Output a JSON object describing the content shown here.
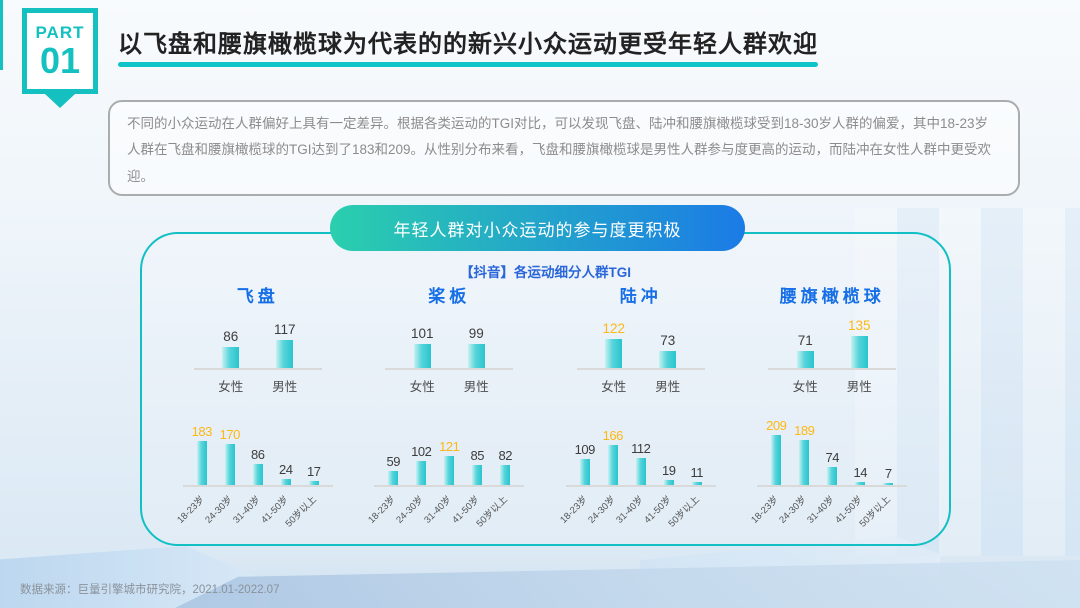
{
  "part_badge": {
    "part": "PART",
    "number": "01"
  },
  "header": {
    "title": "以飞盘和腰旗橄榄球为代表的的新兴小众运动更受年轻人群欢迎"
  },
  "intro": {
    "text": "不同的小众运动在人群偏好上具有一定差异。根据各类运动的TGI对比，可以发现飞盘、陆冲和腰旗橄榄球受到18-30岁人群的偏爱，其中18-23岁人群在飞盘和腰旗橄榄球的TGI达到了183和209。从性别分布来看，飞盘和腰旗橄榄球是男性人群参与度更高的运动，而陆冲在女性人群中更受欢迎。"
  },
  "panel": {
    "pill_title": "年轻人群对小众运动的参与度更积极",
    "chart_subtitle": "【抖音】各运动细分人群TGI"
  },
  "colors": {
    "accent_teal": "#14C0C0",
    "panel_border": "#12BFC4",
    "pill_gradient_from": "#2BCFAE",
    "pill_gradient_to": "#1B7BE6",
    "sport_title_blue": "#176FE8",
    "subtitle_blue": "#2A66D9",
    "value_label": "#3D3D3D",
    "value_label_gold": "#FDB813",
    "bar_gradient_from": "#C6F1F2",
    "bar_gradient_to": "#28C5CF"
  },
  "chart_data": [
    {
      "sport": "飞盘",
      "gender": {
        "type": "bar",
        "ylim": [
          0,
          220
        ],
        "categories": [
          "女性",
          "男性"
        ],
        "values": [
          86,
          117
        ],
        "gold": [
          false,
          false
        ]
      },
      "age": {
        "type": "bar",
        "ylim": [
          0,
          220
        ],
        "categories": [
          "18-23岁",
          "24-30岁",
          "31-40岁",
          "41-50岁",
          "50岁以上"
        ],
        "values": [
          183,
          170,
          86,
          24,
          17
        ],
        "gold": [
          true,
          true,
          false,
          false,
          false
        ]
      }
    },
    {
      "sport": "桨板",
      "gender": {
        "type": "bar",
        "ylim": [
          0,
          220
        ],
        "categories": [
          "女性",
          "男性"
        ],
        "values": [
          101,
          99
        ],
        "gold": [
          false,
          false
        ]
      },
      "age": {
        "type": "bar",
        "ylim": [
          0,
          220
        ],
        "categories": [
          "18-23岁",
          "24-30岁",
          "31-40岁",
          "41-50岁",
          "50岁以上"
        ],
        "values": [
          59,
          102,
          121,
          85,
          82
        ],
        "gold": [
          false,
          false,
          true,
          false,
          false
        ]
      }
    },
    {
      "sport": "陆冲",
      "gender": {
        "type": "bar",
        "ylim": [
          0,
          220
        ],
        "categories": [
          "女性",
          "男性"
        ],
        "values": [
          122,
          73
        ],
        "gold": [
          true,
          false
        ]
      },
      "age": {
        "type": "bar",
        "ylim": [
          0,
          220
        ],
        "categories": [
          "18-23岁",
          "24-30岁",
          "31-40岁",
          "41-50岁",
          "50岁以上"
        ],
        "values": [
          109,
          166,
          112,
          19,
          11
        ],
        "gold": [
          false,
          true,
          false,
          false,
          false
        ]
      }
    },
    {
      "sport": "腰旗橄榄球",
      "gender": {
        "type": "bar",
        "ylim": [
          0,
          220
        ],
        "categories": [
          "女性",
          "男性"
        ],
        "values": [
          71,
          135
        ],
        "gold": [
          false,
          true
        ]
      },
      "age": {
        "type": "bar",
        "ylim": [
          0,
          220
        ],
        "categories": [
          "18-23岁",
          "24-30岁",
          "31-40岁",
          "41-50岁",
          "50岁以上"
        ],
        "values": [
          209,
          189,
          74,
          14,
          7
        ],
        "gold": [
          true,
          true,
          false,
          false,
          false
        ]
      }
    }
  ],
  "footer": {
    "source": "数据来源：巨量引擎城市研究院，2021.01-2022.07"
  }
}
